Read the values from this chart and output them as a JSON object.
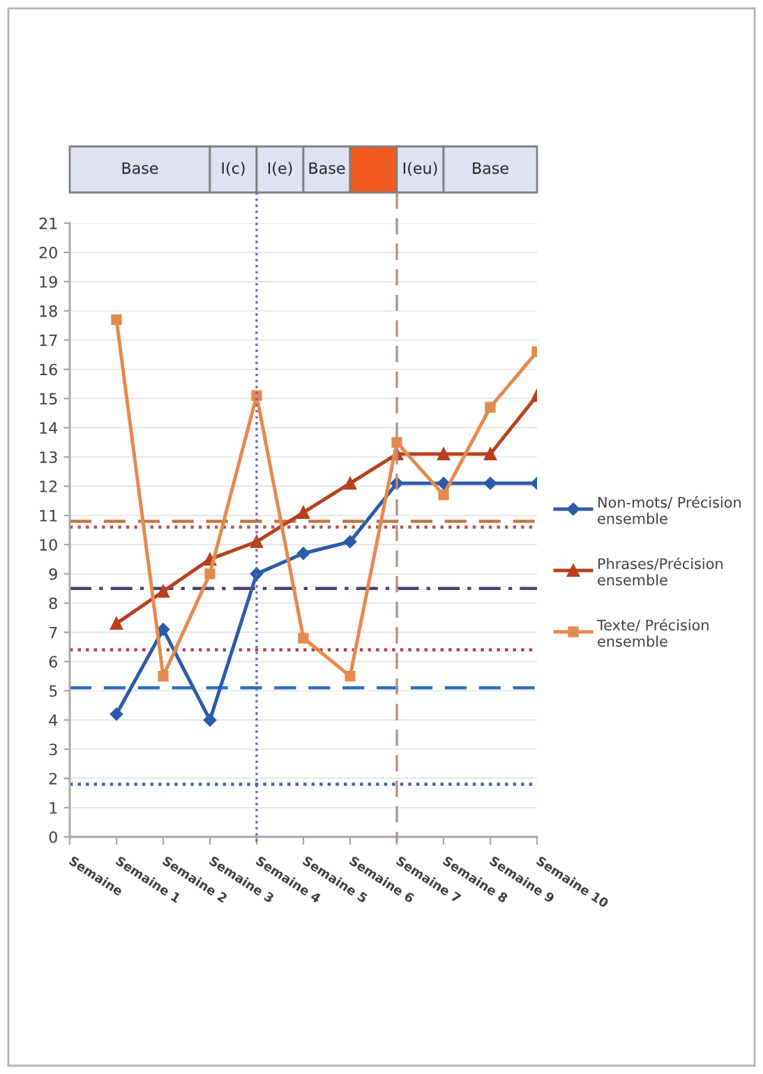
{
  "chart_data": {
    "type": "line",
    "categories": [
      "Semaine",
      "Semaine 1",
      "Semaine 2",
      "Semaine 3",
      "Semaine 4",
      "Semaine 5",
      "Semaine 6",
      "Semaine 7",
      "Semaine 8",
      "Semaine 9",
      "Semaine 10"
    ],
    "series": [
      {
        "name": "Non-mots/ Précision ensemble",
        "color": "#2a5caa",
        "marker": "diamond",
        "values": [
          null,
          4.2,
          7.1,
          4.0,
          9.0,
          9.7,
          10.1,
          12.1,
          12.1,
          12.1,
          12.1
        ]
      },
      {
        "name": "Phrases/Précision ensemble",
        "color": "#b8401c",
        "marker": "triangle",
        "values": [
          null,
          7.3,
          8.4,
          9.5,
          10.1,
          11.1,
          12.1,
          13.1,
          13.1,
          13.1,
          15.1
        ]
      },
      {
        "name": "Texte/ Précision ensemble",
        "color": "#e58a4e",
        "marker": "square",
        "values": [
          null,
          17.7,
          5.5,
          9.0,
          15.1,
          6.8,
          5.5,
          13.5,
          11.7,
          14.7,
          16.6
        ]
      }
    ],
    "ylim": [
      0,
      21
    ],
    "yticks": [
      0,
      1,
      2,
      3,
      4,
      5,
      6,
      7,
      8,
      9,
      10,
      11,
      12,
      13,
      14,
      15,
      16,
      17,
      18,
      19,
      20,
      21
    ],
    "grid": "y",
    "legend": "right",
    "ref_lines": [
      {
        "axis": "y",
        "value": 10.8,
        "color": "#c07840",
        "line_style": "dashed"
      },
      {
        "axis": "y",
        "value": 10.6,
        "color": "#c0504d",
        "line_style": "dotted"
      },
      {
        "axis": "y",
        "value": 8.5,
        "color": "#4a3f7a",
        "line_style": "dashdot"
      },
      {
        "axis": "y",
        "value": 6.4,
        "color": "#b04050",
        "line_style": "dotted"
      },
      {
        "axis": "y",
        "value": 5.1,
        "color": "#2f6ec0",
        "line_style": "dashed"
      },
      {
        "axis": "y",
        "value": 1.8,
        "color": "#3a62b8",
        "line_style": "dotted"
      },
      {
        "axis": "x",
        "value": "Semaine 4",
        "color": "#6f66a8",
        "line_style": "dotted"
      },
      {
        "axis": "x",
        "value": "Semaine 7",
        "color": "#b89080",
        "line_style": "dashed"
      }
    ],
    "annotations": [
      "Base",
      "I(c)",
      "I(e)",
      "Base",
      "I(eu)",
      "Base"
    ]
  }
}
